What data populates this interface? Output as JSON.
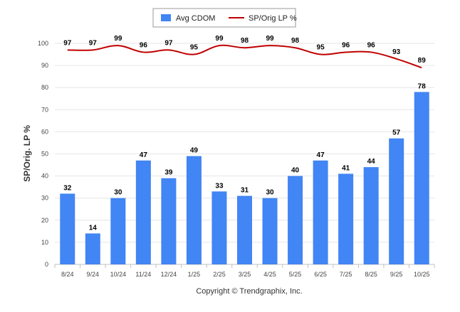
{
  "chart_data": {
    "type": "bar+line",
    "categories": [
      "8/24",
      "9/24",
      "10/24",
      "11/24",
      "12/24",
      "1/25",
      "2/25",
      "3/25",
      "4/25",
      "5/25",
      "6/25",
      "7/25",
      "8/25",
      "9/25",
      "10/25"
    ],
    "series": [
      {
        "name": "Avg CDOM",
        "type": "bar",
        "values": [
          32,
          14,
          30,
          47,
          39,
          49,
          33,
          31,
          30,
          40,
          47,
          41,
          44,
          57,
          78
        ]
      },
      {
        "name": "SP/Orig LP %",
        "type": "line",
        "values": [
          97,
          97,
          99,
          96,
          97,
          95,
          99,
          98,
          99,
          98,
          95,
          96,
          96,
          93,
          89
        ]
      }
    ],
    "ylabel": "SP/Orig. LP %",
    "xlabel": "",
    "ylim": [
      0,
      100
    ],
    "yticks": [
      0,
      10,
      20,
      30,
      40,
      50,
      60,
      70,
      80,
      90,
      100
    ],
    "grid": true,
    "legend": "top-center",
    "colors": {
      "bar": "#4285f4",
      "line": "#c00000",
      "grid": "#e6e6e6",
      "axis": "#c0c0c0"
    }
  },
  "credit": "Copyright © Trendgraphix, Inc."
}
